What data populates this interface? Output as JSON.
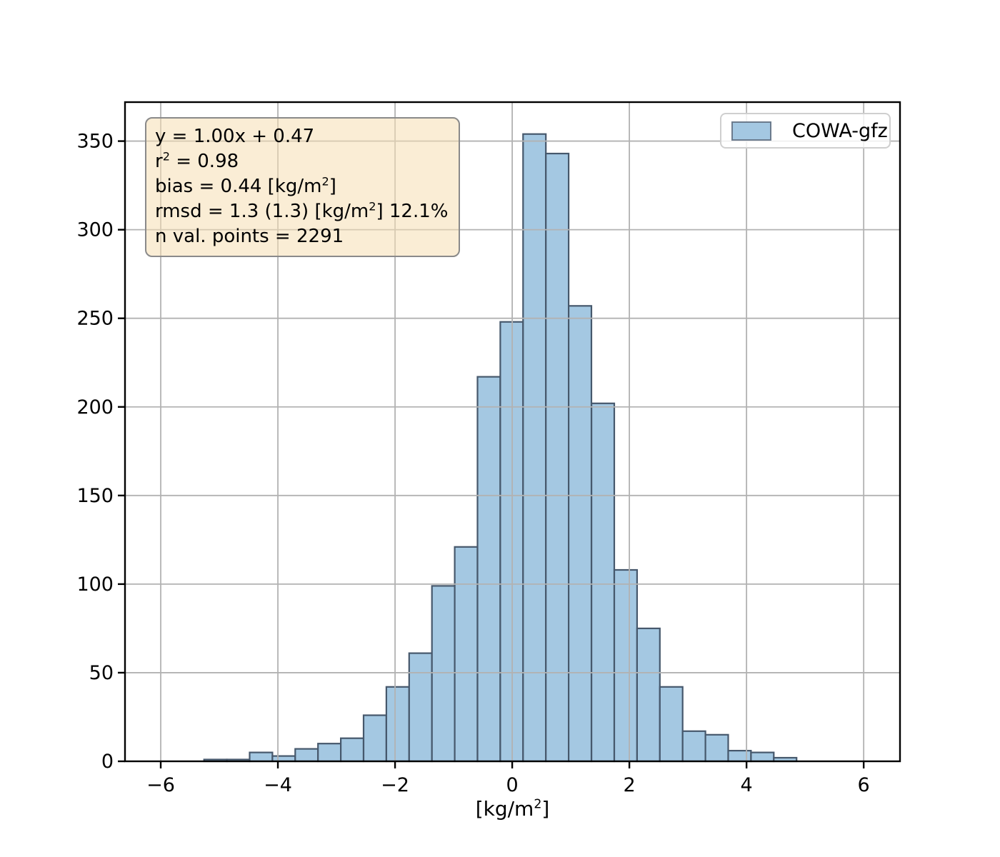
{
  "chart_data": {
    "type": "bar",
    "variant": "histogram",
    "title": "",
    "xlabel": "[kg/m²]",
    "ylabel": "",
    "legend": {
      "label": "COWA-gfz",
      "position": "upper right"
    },
    "annotation_box": {
      "lines": [
        "y = 1.00x + 0.47",
        "r² = 0.98",
        "bias = 0.44 [kg/m²]",
        "rmsd = 1.3 (1.3) [kg/m²] 12.1%",
        "n val. points = 2291"
      ]
    },
    "bins": {
      "start": -5.26,
      "width": 0.389
    },
    "counts": [
      1,
      1,
      5,
      3,
      7,
      10,
      13,
      26,
      42,
      61,
      99,
      121,
      217,
      248,
      354,
      343,
      257,
      202,
      108,
      75,
      42,
      17,
      15,
      6,
      5,
      2
    ],
    "xlim": [
      -6.61,
      6.62
    ],
    "ylim": [
      0,
      372
    ],
    "x_ticks": [
      -6,
      -4,
      -2,
      0,
      2,
      4,
      6
    ],
    "y_ticks": [
      0,
      50,
      100,
      150,
      200,
      250,
      300,
      350
    ],
    "grid": true,
    "colors": {
      "bar_fill": "#a4c8e2",
      "bar_edge": "#46586c",
      "grid": "#b2b2b2",
      "axis": "#000000",
      "annotation_bg": "#faeed9",
      "annotation_border": "#8a8a8a",
      "legend_border": "#cfcfcf"
    }
  }
}
